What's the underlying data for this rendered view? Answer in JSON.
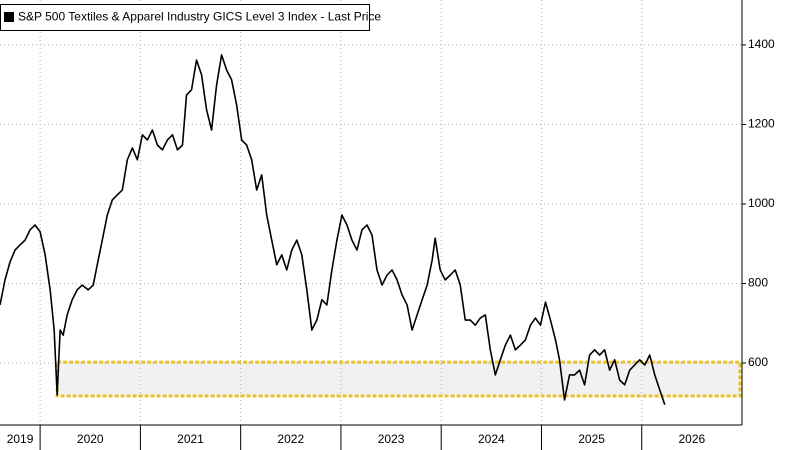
{
  "chart_data": {
    "type": "line",
    "legend": "upper left",
    "xlim": [
      2019.6,
      2027.0
    ],
    "ylim": [
      444,
      1513
    ],
    "yticks": [
      600,
      800,
      1000,
      1200,
      1400
    ],
    "xticks": [
      {
        "value": 2019.8,
        "label": "2019"
      },
      {
        "value": 2020.5,
        "label": "2020"
      },
      {
        "value": 2021.5,
        "label": "2021"
      },
      {
        "value": 2022.5,
        "label": "2022"
      },
      {
        "value": 2023.5,
        "label": "2023"
      },
      {
        "value": 2024.5,
        "label": "2024"
      },
      {
        "value": 2025.5,
        "label": "2025"
      },
      {
        "value": 2026.5,
        "label": "2026"
      }
    ],
    "xgrid": [
      2020,
      2021,
      2022,
      2023,
      2024,
      2025,
      2026
    ],
    "grid": true,
    "highlight": {
      "xlim": [
        2020.17,
        2026.98
      ],
      "ylim": [
        517,
        602
      ],
      "color": "#e8c030"
    },
    "x": [
      2019.6,
      2019.65,
      2019.7,
      2019.75,
      2019.8,
      2019.85,
      2019.9,
      2019.95,
      2020.0,
      2020.05,
      2020.1,
      2020.14,
      2020.17,
      2020.2,
      2020.23,
      2020.27,
      2020.32,
      2020.37,
      2020.42,
      2020.48,
      2020.53,
      2020.57,
      2020.62,
      2020.67,
      2020.72,
      2020.77,
      2020.82,
      2020.87,
      2020.92,
      2020.97,
      2021.02,
      2021.07,
      2021.12,
      2021.17,
      2021.22,
      2021.27,
      2021.32,
      2021.37,
      2021.42,
      2021.46,
      2021.51,
      2021.56,
      2021.61,
      2021.66,
      2021.71,
      2021.76,
      2021.81,
      2021.86,
      2021.91,
      2021.96,
      2022.01,
      2022.06,
      2022.11,
      2022.16,
      2022.21,
      2022.26,
      2022.31,
      2022.36,
      2022.41,
      2022.46,
      2022.51,
      2022.56,
      2022.61,
      2022.66,
      2022.71,
      2022.76,
      2022.81,
      2022.86,
      2022.91,
      2022.96,
      2023.01,
      2023.06,
      2023.11,
      2023.16,
      2023.21,
      2023.26,
      2023.31,
      2023.36,
      2023.41,
      2023.46,
      2023.51,
      2023.56,
      2023.61,
      2023.66,
      2023.71,
      2023.76,
      2023.81,
      2023.86,
      2023.91,
      2023.94,
      2023.99,
      2024.04,
      2024.09,
      2024.14,
      2024.19,
      2024.24,
      2024.29,
      2024.34,
      2024.39,
      2024.44,
      2024.49,
      2024.54,
      2024.59,
      2024.64,
      2024.69,
      2024.74,
      2024.79,
      2024.84,
      2024.89,
      2024.94,
      2024.99,
      2025.04,
      2025.09,
      2025.14,
      2025.18,
      2025.23,
      2025.28,
      2025.33,
      2025.38,
      2025.43,
      2025.48,
      2025.53,
      2025.58,
      2025.63,
      2025.68,
      2025.73,
      2025.78,
      2025.83,
      2025.88,
      2025.93,
      2025.98,
      2026.03,
      2026.08,
      2026.13,
      2026.18,
      2026.23
    ],
    "series": [
      {
        "name": "S&P 500 Textiles & Apparel Industry GICS Level 3 Index - Last Price",
        "color": "#000000",
        "values": [
          746,
          809,
          854,
          884,
          897,
          909,
          935,
          947,
          930,
          872,
          784,
          683,
          520,
          683,
          670,
          721,
          759,
          784,
          796,
          784,
          796,
          847,
          909,
          972,
          1010,
          1023,
          1035,
          1111,
          1141,
          1111,
          1174,
          1161,
          1186,
          1148,
          1136,
          1161,
          1174,
          1136,
          1148,
          1274,
          1287,
          1362,
          1325,
          1237,
          1186,
          1299,
          1375,
          1337,
          1312,
          1249,
          1161,
          1148,
          1111,
          1035,
          1073,
          972,
          909,
          847,
          872,
          834,
          884,
          909,
          872,
          784,
          683,
          708,
          759,
          746,
          834,
          909,
          972,
          947,
          909,
          884,
          935,
          947,
          922,
          834,
          796,
          821,
          834,
          809,
          771,
          746,
          683,
          721,
          759,
          796,
          859,
          914,
          834,
          809,
          821,
          834,
          796,
          708,
          708,
          695,
          713,
          721,
          633,
          570,
          608,
          645,
          670,
          633,
          645,
          658,
          695,
          713,
          695,
          753,
          708,
          658,
          608,
          507,
          570,
          570,
          582,
          545,
          620,
          633,
          620,
          633,
          582,
          608,
          557,
          545,
          582,
          595,
          608,
          595,
          620,
          570,
          532,
          495
        ]
      }
    ]
  }
}
